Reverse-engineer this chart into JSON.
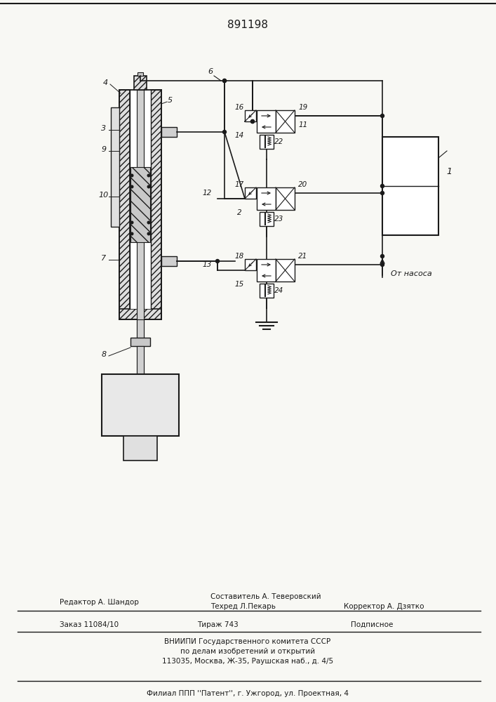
{
  "title": "891198",
  "bg_color": "#f8f8f4",
  "line_color": "#1a1a1a",
  "footer_l1_left": "Редактор А. Шандор",
  "footer_l1_c1": "Составитель А. Теверовский",
  "footer_l1_c2": "Техред Л.Пекарь",
  "footer_l1_right": "Корректор А. Дзятко",
  "footer_l2_left": "Заказ 11084/10",
  "footer_l2_center": "Тираж 743",
  "footer_l2_right": "Подписное",
  "footer_l3": "ВНИИПИ Государственного комитета СССР",
  "footer_l4": "по делам изобретений и открытий",
  "footer_l5": "113035, Москва, Ж-35, Раушская наб., д. 4/5",
  "footer_l6": "Филиал ППП ''Патент'', г. Ужгород, ул. Проектная, 4",
  "pump_label": "От насоса"
}
